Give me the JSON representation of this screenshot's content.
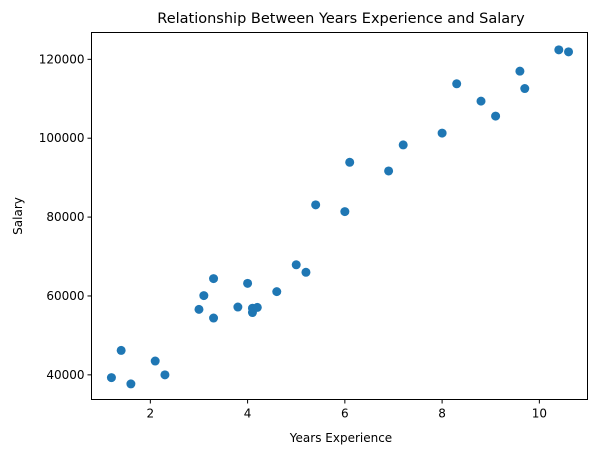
{
  "chart_data": {
    "type": "scatter",
    "title": "Relationship Between Years Experience and Salary",
    "xlabel": "Years Experience",
    "ylabel": "Salary",
    "xlim": [
      0.79,
      10.99
    ],
    "ylim": [
      33750,
      126800
    ],
    "xticks": [
      2,
      4,
      6,
      8,
      10
    ],
    "yticks": [
      40000,
      60000,
      80000,
      100000,
      120000
    ],
    "grid": false,
    "legend": "none",
    "point_color": "#1f77b4",
    "points": [
      {
        "x": 1.2,
        "y": 39300
      },
      {
        "x": 1.4,
        "y": 46200
      },
      {
        "x": 1.6,
        "y": 37700
      },
      {
        "x": 2.1,
        "y": 43500
      },
      {
        "x": 2.3,
        "y": 40000
      },
      {
        "x": 3.0,
        "y": 56600
      },
      {
        "x": 3.1,
        "y": 60100
      },
      {
        "x": 3.3,
        "y": 54400
      },
      {
        "x": 3.3,
        "y": 64400
      },
      {
        "x": 3.8,
        "y": 57200
      },
      {
        "x": 4.0,
        "y": 63200
      },
      {
        "x": 4.1,
        "y": 55800
      },
      {
        "x": 4.1,
        "y": 56900
      },
      {
        "x": 4.2,
        "y": 57100
      },
      {
        "x": 4.6,
        "y": 61100
      },
      {
        "x": 5.0,
        "y": 67900
      },
      {
        "x": 5.2,
        "y": 66000
      },
      {
        "x": 5.4,
        "y": 83100
      },
      {
        "x": 6.0,
        "y": 81400
      },
      {
        "x": 6.1,
        "y": 93900
      },
      {
        "x": 6.9,
        "y": 91700
      },
      {
        "x": 7.2,
        "y": 98300
      },
      {
        "x": 8.0,
        "y": 101300
      },
      {
        "x": 8.3,
        "y": 113800
      },
      {
        "x": 8.8,
        "y": 109400
      },
      {
        "x": 9.1,
        "y": 105600
      },
      {
        "x": 9.6,
        "y": 117000
      },
      {
        "x": 9.7,
        "y": 112600
      },
      {
        "x": 10.4,
        "y": 122400
      },
      {
        "x": 10.6,
        "y": 121900
      }
    ]
  }
}
